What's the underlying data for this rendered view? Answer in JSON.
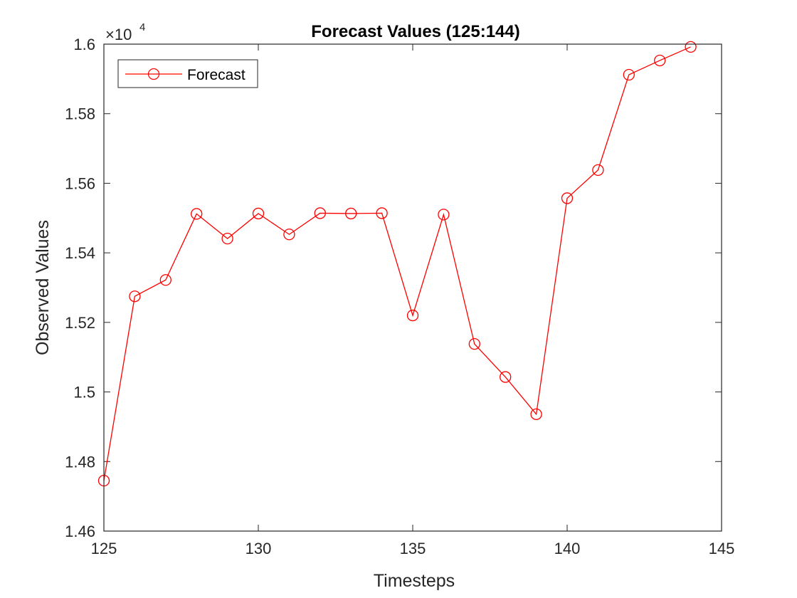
{
  "chart_data": {
    "type": "line",
    "title": "Forecast Values (125:144)",
    "xlabel": "Timesteps",
    "ylabel": "Observed Values",
    "y_exponent_label": "×10",
    "y_exponent_power": "4",
    "xlim": [
      125,
      145
    ],
    "ylim": [
      14600,
      16000
    ],
    "xticks": [
      125,
      130,
      135,
      140,
      145
    ],
    "yticks": [
      14600,
      14800,
      15000,
      15200,
      15400,
      15600,
      15800,
      16000
    ],
    "x_tick_labels": [
      "125",
      "130",
      "135",
      "140",
      "145"
    ],
    "y_tick_labels": [
      "1.46",
      "1.48",
      "1.5",
      "1.52",
      "1.54",
      "1.56",
      "1.58",
      "1.6"
    ],
    "grid": false,
    "legend_position": "top-left",
    "series": [
      {
        "name": "Forecast",
        "color": "#ff0000",
        "marker": "circle",
        "x": [
          125,
          126,
          127,
          128,
          129,
          130,
          131,
          132,
          133,
          134,
          135,
          136,
          137,
          138,
          139,
          140,
          141,
          142,
          143,
          144
        ],
        "values": [
          14745,
          15275,
          15322,
          15512,
          15441,
          15513,
          15453,
          15514,
          15513,
          15514,
          15220,
          15510,
          15138,
          15043,
          14936,
          15557,
          15638,
          15912,
          15953,
          15992
        ]
      }
    ]
  }
}
